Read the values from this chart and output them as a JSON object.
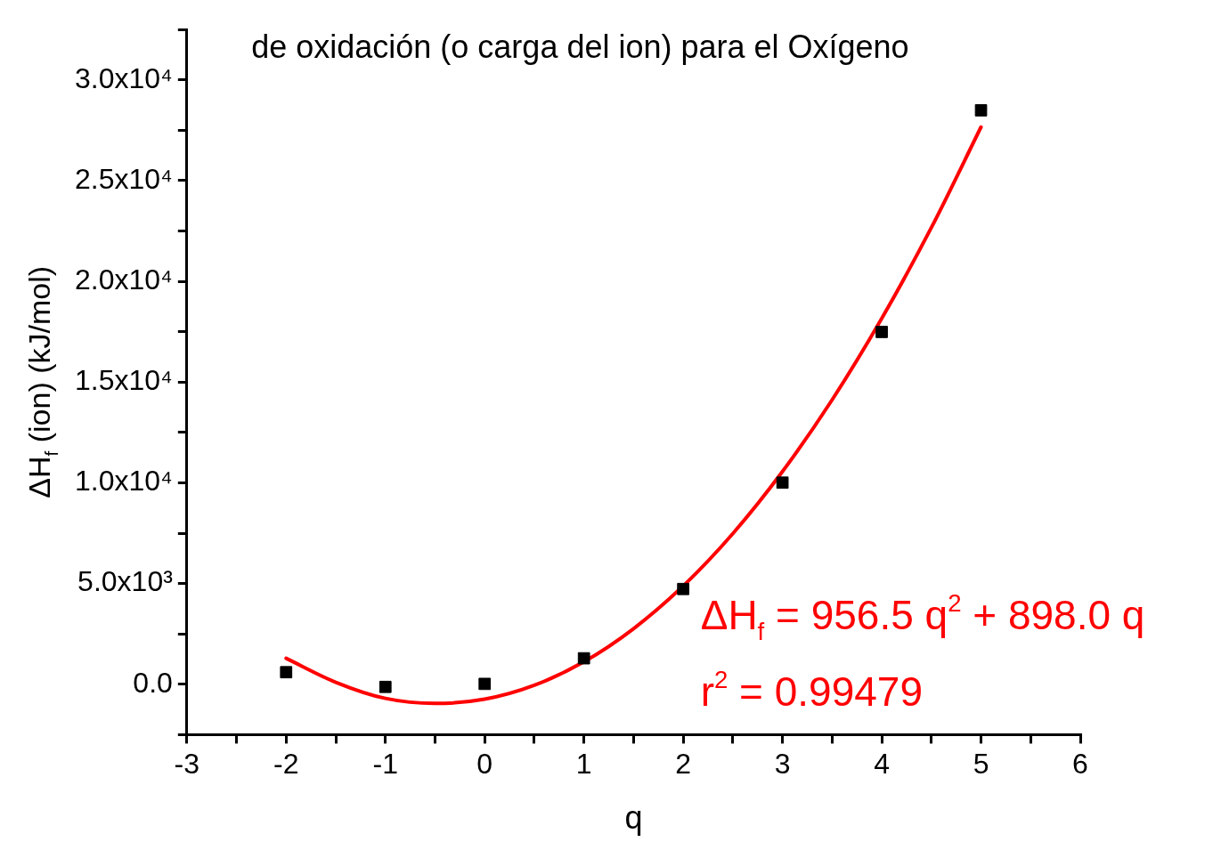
{
  "chart_data": {
    "type": "scatter",
    "title": "de oxidación (o carga del ion) para el Oxígeno",
    "xlabel": "q",
    "ylabel": "ΔH$_{f}$ (ion) (kJ/mol)",
    "annotations": [
      "ΔH$_{f}$ = 956.5 q$^{2}$ + 898.0 q",
      "r$^{2}$ = 0.99479"
    ],
    "xlim": [
      -3,
      6
    ],
    "xticks": [
      -3,
      {
        "value": -2.5,
        "label": null
      },
      -2,
      {
        "value": -1.5,
        "label": null
      },
      -1,
      {
        "value": -0.5,
        "label": null
      },
      0,
      {
        "value": 0.5,
        "label": null
      },
      1,
      {
        "value": 1.5,
        "label": null
      },
      2,
      {
        "value": 2.5,
        "label": null
      },
      3,
      {
        "value": 3.5,
        "label": null
      },
      4,
      {
        "value": 4.5,
        "label": null
      },
      5,
      {
        "value": 5.5,
        "label": null
      },
      6
    ],
    "ylim": [
      -2500,
      32500
    ],
    "yticks": [
      {
        "value": -2500,
        "label": null
      },
      {
        "value": 0,
        "label": "0.0"
      },
      {
        "value": 2500,
        "label": null
      },
      {
        "value": 5000,
        "label": "5.0x10³"
      },
      {
        "value": 7500,
        "label": null
      },
      {
        "value": 10000,
        "label": "1.0x10⁴"
      },
      {
        "value": 12500,
        "label": null
      },
      {
        "value": 15000,
        "label": "1.5x10⁴"
      },
      {
        "value": 17500,
        "label": null
      },
      {
        "value": 20000,
        "label": "2.0x10⁴"
      },
      {
        "value": 22500,
        "label": null
      },
      {
        "value": 25000,
        "label": "2.5x10⁴"
      },
      {
        "value": 27500,
        "label": null
      },
      {
        "value": 30000,
        "label": "3.0x10⁴"
      },
      {
        "value": 32500,
        "label": null
      }
    ],
    "grid": false,
    "legend": false,
    "series": [
      {
        "type": "scatter",
        "color": "#000000",
        "marker": "square",
        "x": [
          -2,
          -1,
          0,
          1,
          2,
          3,
          4,
          5
        ],
        "values": [
          600,
          -130,
          20,
          1290,
          4730,
          10010,
          17490,
          28490
        ]
      },
      {
        "type": "line",
        "color": "#ff0000",
        "marker": "none",
        "line_style": "solid",
        "x": [
          -2,
          -1.5,
          -1,
          -0.5,
          0,
          0.5,
          1,
          1.5,
          2,
          2.5,
          3,
          3.5,
          4,
          4.5,
          5
        ],
        "values": [
          1290,
          100,
          -700,
          -950,
          -740,
          -50,
          1115,
          2760,
          4880,
          7480,
          10560,
          14120,
          18160,
          22670,
          27660
        ]
      }
    ]
  }
}
